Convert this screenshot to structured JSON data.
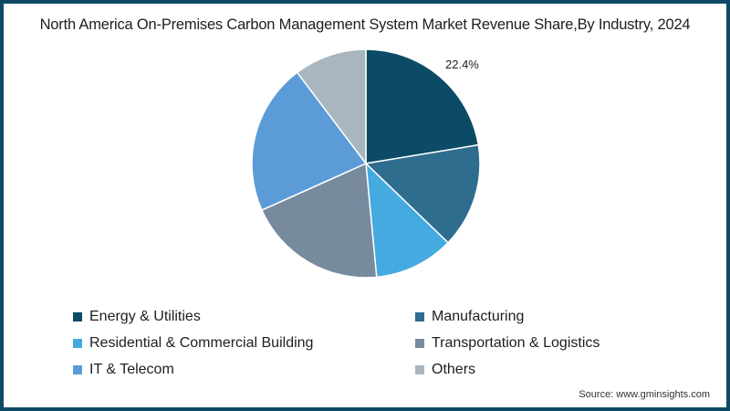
{
  "chart_data": {
    "type": "pie",
    "title": "North America On-Premises Carbon Management System Market Revenue Share,By Industry, 2024",
    "categories": [
      "Energy & Utilities",
      "Manufacturing",
      "Residential & Commercial Building",
      "Transportation & Logistics",
      "IT & Telecom",
      "Others"
    ],
    "values": [
      22.4,
      14.8,
      11.3,
      19.8,
      21.4,
      10.3
    ],
    "colors": [
      "#0b4b66",
      "#2f6d8f",
      "#45aae0",
      "#778a9e",
      "#5b9bd8",
      "#a9b6bf"
    ],
    "data_labels": [
      {
        "category": "Energy & Utilities",
        "text": "22.4%"
      }
    ],
    "legend_position": "bottom",
    "start_angle_deg": 0,
    "direction": "clockwise"
  },
  "title": "North America On-Premises Carbon Management System Market Revenue Share,By Industry, 2024",
  "legend": [
    {
      "label": "Energy & Utilities",
      "color": "#0b4b66"
    },
    {
      "label": "Manufacturing",
      "color": "#2f6d8f"
    },
    {
      "label": "Residential & Commercial Building",
      "color": "#45aae0"
    },
    {
      "label": "Transportation & Logistics",
      "color": "#778a9e"
    },
    {
      "label": "IT & Telecom",
      "color": "#5b9bd8"
    },
    {
      "label": "Others",
      "color": "#a9b6bf"
    }
  ],
  "label_text": "22.4%",
  "source": "Source: www.gminsights.com",
  "frame_color": "#0e4a64"
}
